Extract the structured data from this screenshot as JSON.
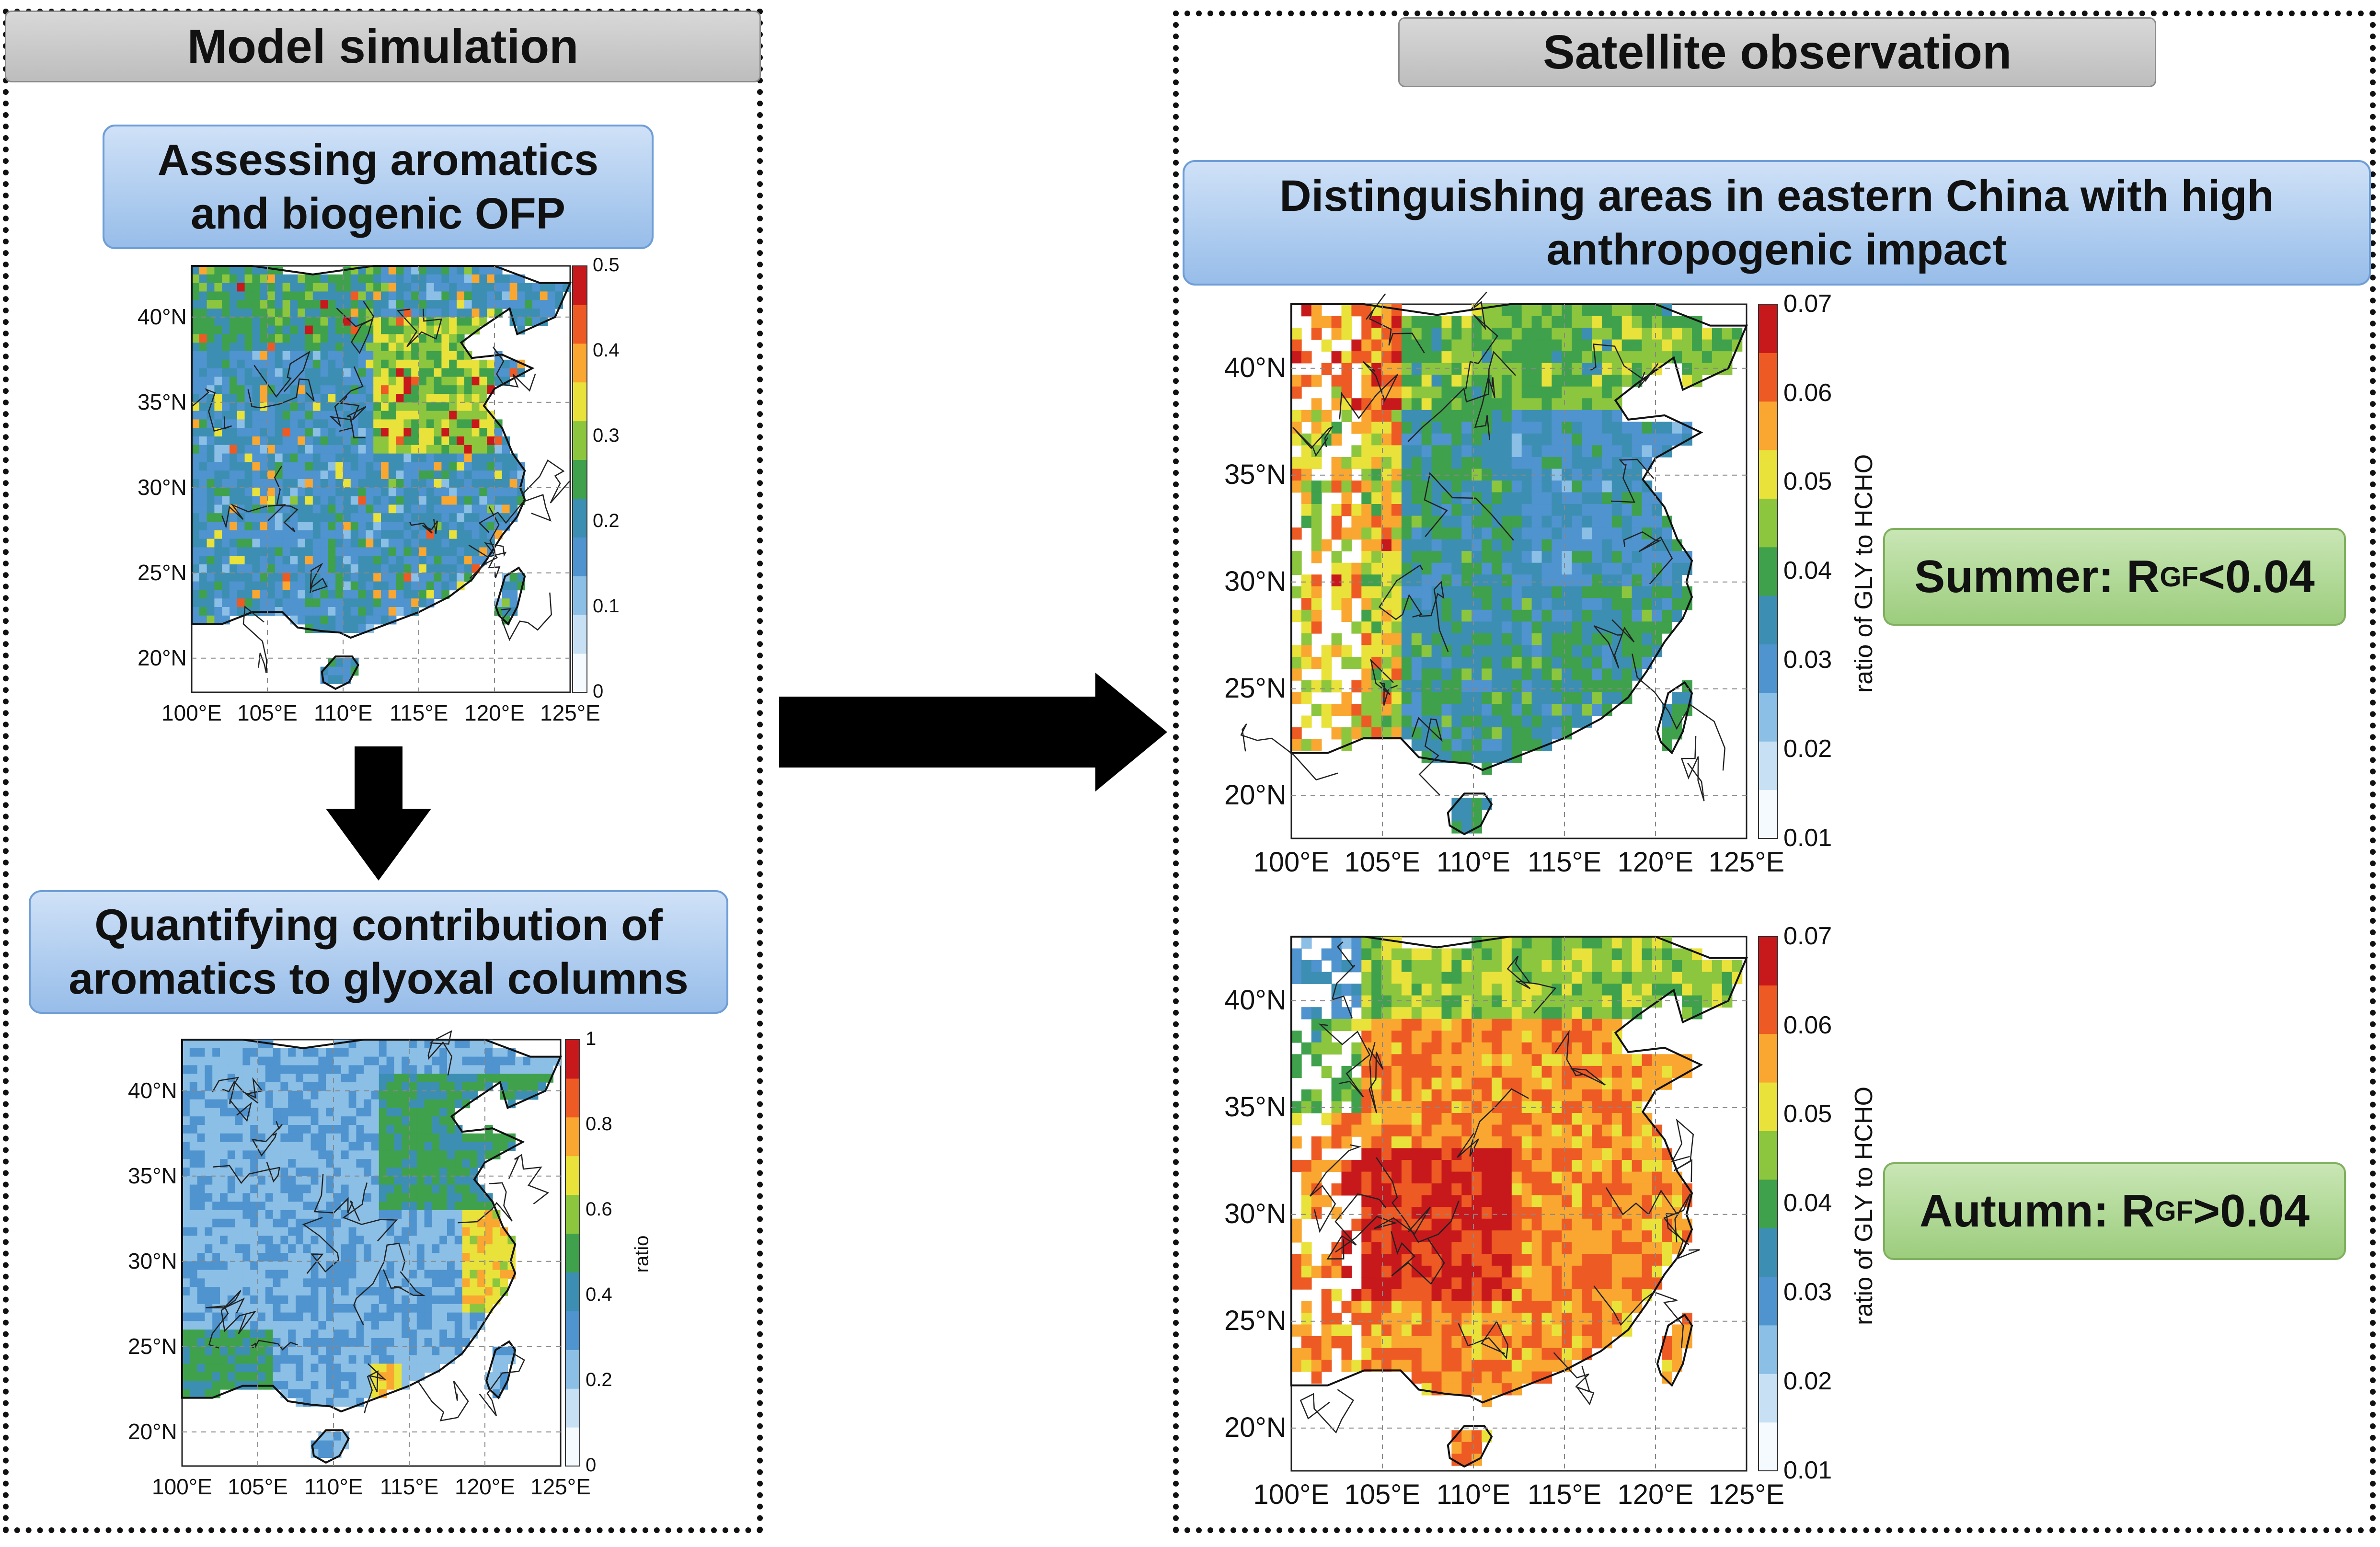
{
  "left_panel": {
    "header": "Model simulation",
    "box1_line1": "Assessing aromatics",
    "box1_line2": "and biogenic OFP",
    "box2_line1": "Quantifying contribution of",
    "box2_line2": "aromatics to glyoxal columns"
  },
  "right_panel": {
    "header": "Satellite observation",
    "box_line1": "Distinguishing areas in eastern China with high",
    "box_line2": "anthropogenic impact",
    "summer_text": "Summer: R",
    "summer_sub": "GF",
    "summer_tail": "<0.04",
    "autumn_text": "Autumn: R",
    "autumn_sub": "GF",
    "autumn_tail": ">0.04"
  },
  "maps": {
    "lon_labels": [
      "100°E",
      "105°E",
      "110°E",
      "115°E",
      "120°E",
      "125°E"
    ],
    "lat_labels": [
      "40°N",
      "35°N",
      "30°N",
      "25°N",
      "20°N"
    ],
    "map1": {
      "ticks": [
        "0.5",
        "0.4",
        "0.3",
        "0.2",
        "0.1",
        "0"
      ],
      "theme": "green-blue-red hotspots"
    },
    "map2": {
      "ticks": [
        "1",
        "0.8",
        "0.6",
        "0.4",
        "0.2",
        "0"
      ],
      "cbar_label": "ratio",
      "theme": "blue with green/red east coast"
    },
    "map3": {
      "ticks": [
        "0.07",
        "0.06",
        "0.05",
        "0.04",
        "0.03",
        "0.02",
        "0.01"
      ],
      "cbar_label": "ratio of GLY to HCHO",
      "theme": "blue-green summer"
    },
    "map4": {
      "ticks": [
        "0.07",
        "0.06",
        "0.05",
        "0.04",
        "0.03",
        "0.02",
        "0.01"
      ],
      "cbar_label": "ratio of GLY to HCHO",
      "theme": "orange-red autumn"
    }
  },
  "colors": {
    "arrow": "#000000",
    "header_bg": "#c8c8c8",
    "blue_box": "#a9c8ee",
    "green_box": "#b2d998",
    "colormap": [
      "#f5fafe",
      "#c7e0f4",
      "#8bbfe6",
      "#4f93cf",
      "#3c8fb3",
      "#3fa14c",
      "#8cc63e",
      "#e9e23a",
      "#f9a731",
      "#ee5a24",
      "#c7181c"
    ]
  }
}
